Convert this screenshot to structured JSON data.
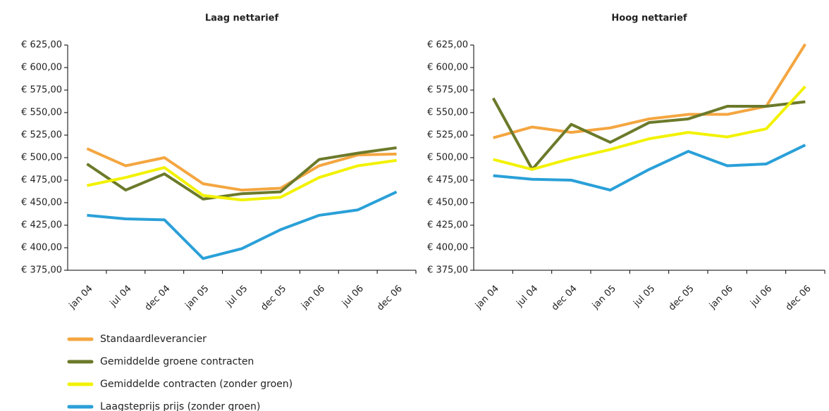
{
  "chart_data": [
    {
      "type": "line",
      "title": "Laag nettarief",
      "categories": [
        "jan 04",
        "jul 04",
        "dec 04",
        "jan 05",
        "jul 05",
        "dec 05",
        "jan 06",
        "jul 06",
        "dec 06"
      ],
      "ylim": [
        375,
        625
      ],
      "yticks": [
        {
          "value": 375,
          "label": "€ 375,00"
        },
        {
          "value": 400,
          "label": "€ 400,00"
        },
        {
          "value": 425,
          "label": "€ 425,00"
        },
        {
          "value": 450,
          "label": "€ 450,00"
        },
        {
          "value": 475,
          "label": "€ 475,00"
        },
        {
          "value": 500,
          "label": "€ 500,00"
        },
        {
          "value": 525,
          "label": "€ 525,00"
        },
        {
          "value": 550,
          "label": "€ 550,00"
        },
        {
          "value": 575,
          "label": "€ 575,00"
        },
        {
          "value": 600,
          "label": "€ 600,00"
        },
        {
          "value": 625,
          "label": "€ 625,00"
        }
      ],
      "series": [
        {
          "name": "Standaardleverancier",
          "color": "#f4a640",
          "values": [
            510,
            491,
            500,
            471,
            464,
            466,
            491,
            503,
            504
          ]
        },
        {
          "name": "Gemiddelde groene contracten",
          "color": "#6b7a2a",
          "values": [
            493,
            464,
            482,
            454,
            460,
            462,
            498,
            505,
            511
          ]
        },
        {
          "name": "Gemiddelde contracten (zonder groen)",
          "color": "#f2f200",
          "values": [
            469,
            478,
            489,
            458,
            453,
            456,
            478,
            491,
            497
          ]
        },
        {
          "name": "Laagsteprijs prijs (zonder groen)",
          "color": "#2aa0d8",
          "values": [
            436,
            432,
            431,
            388,
            399,
            420,
            436,
            442,
            462
          ]
        }
      ]
    },
    {
      "type": "line",
      "title": "Hoog nettarief",
      "categories": [
        "jan 04",
        "jul 04",
        "dec 04",
        "jan 05",
        "jul 05",
        "dec 05",
        "jan 06",
        "jul 06",
        "dec 06"
      ],
      "ylim": [
        375,
        625
      ],
      "yticks": [
        {
          "value": 375,
          "label": "€ 375,00"
        },
        {
          "value": 400,
          "label": "€ 400,00"
        },
        {
          "value": 425,
          "label": "€ 425,00"
        },
        {
          "value": 450,
          "label": "€ 450,00"
        },
        {
          "value": 475,
          "label": "€ 475,00"
        },
        {
          "value": 500,
          "label": "€ 500,00"
        },
        {
          "value": 525,
          "label": "€ 525,00"
        },
        {
          "value": 550,
          "label": "€ 550,00"
        },
        {
          "value": 575,
          "label": "€ 575,00"
        },
        {
          "value": 600,
          "label": "€ 600,00"
        },
        {
          "value": 625,
          "label": "€ 625,00"
        }
      ],
      "series": [
        {
          "color": "#f4a640",
          "values": [
            522,
            534,
            528,
            533,
            543,
            548,
            548,
            557,
            626
          ]
        },
        {
          "color": "#6b7a2a",
          "values": [
            566,
            487,
            537,
            517,
            539,
            543,
            557,
            557,
            562
          ]
        },
        {
          "color": "#f2f200",
          "values": [
            498,
            487,
            499,
            509,
            521,
            528,
            523,
            532,
            579
          ]
        },
        {
          "color": "#2aa0d8",
          "values": [
            480,
            476,
            475,
            464,
            487,
            507,
            491,
            493,
            514
          ]
        }
      ]
    }
  ]
}
